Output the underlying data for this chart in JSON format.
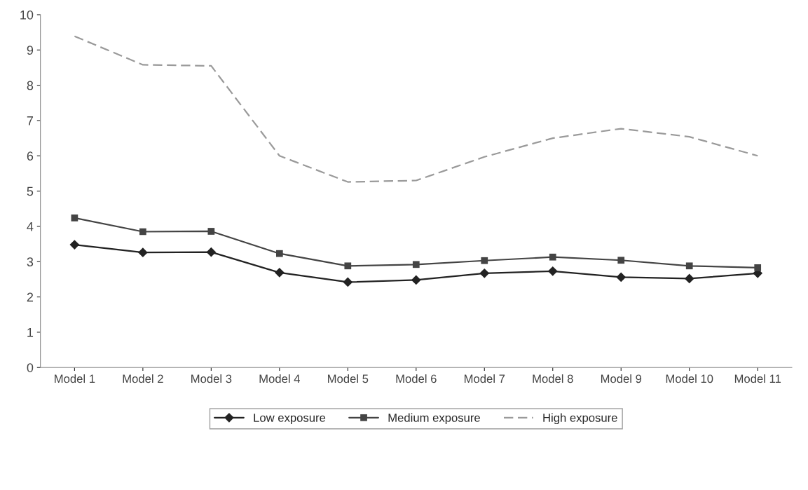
{
  "chart_data": {
    "type": "line",
    "categories": [
      "Model 1",
      "Model 2",
      "Model 3",
      "Model 4",
      "Model 5",
      "Model 6",
      "Model 7",
      "Model 8",
      "Model 9",
      "Model 10",
      "Model 11"
    ],
    "series": [
      {
        "name": "Low exposure",
        "color": "#222222",
        "marker": "diamond",
        "line_style": "solid",
        "values": [
          3.48,
          3.26,
          3.27,
          2.69,
          2.42,
          2.48,
          2.67,
          2.73,
          2.56,
          2.52,
          2.67
        ]
      },
      {
        "name": "Medium exposure",
        "color": "#444444",
        "marker": "square",
        "line_style": "solid",
        "values": [
          4.24,
          3.85,
          3.86,
          3.23,
          2.88,
          2.92,
          3.03,
          3.13,
          3.04,
          2.88,
          2.83
        ]
      },
      {
        "name": "High exposure",
        "color": "#9a9a9a",
        "marker": "none",
        "line_style": "dashed",
        "values": [
          9.39,
          8.58,
          8.55,
          6.0,
          5.26,
          5.3,
          5.97,
          6.5,
          6.77,
          6.54,
          6.0
        ]
      }
    ],
    "ylim": [
      0,
      10
    ],
    "yticks": [
      0,
      1,
      2,
      3,
      4,
      5,
      6,
      7,
      8,
      9,
      10
    ],
    "legend": "bottom"
  }
}
